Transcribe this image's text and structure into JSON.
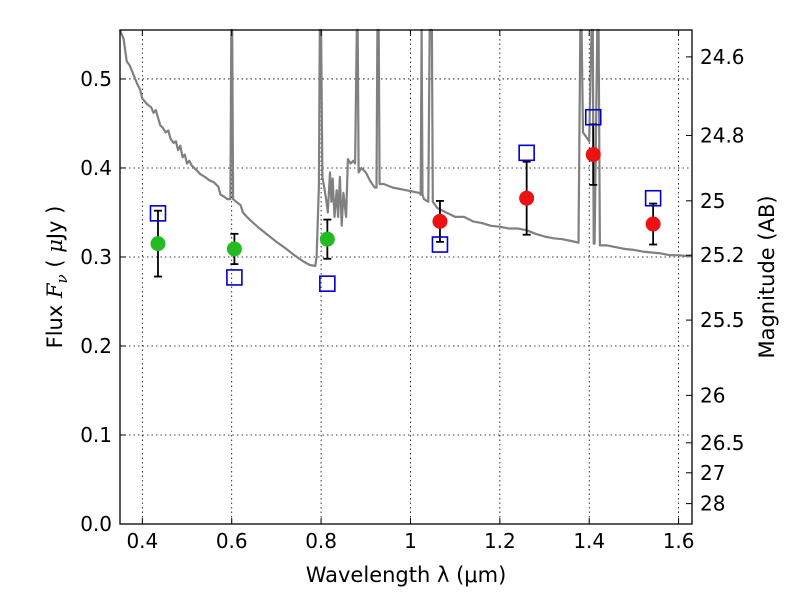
{
  "chart_data": {
    "type": "scatter",
    "xlabel": "Wavelength  λ (μm)",
    "ylabel_parts": [
      "Flux  ",
      "F",
      "ν",
      "  ( ",
      "μ",
      "Jy )"
    ],
    "y2label": "Magnitude (AB)",
    "xlim": [
      0.35,
      1.63
    ],
    "ylim": [
      0,
      0.555
    ],
    "grid": true,
    "x_ticks": [
      {
        "v": 0.4,
        "label": "0.4"
      },
      {
        "v": 0.6,
        "label": "0.6"
      },
      {
        "v": 0.8,
        "label": "0.8"
      },
      {
        "v": 1.0,
        "label": "1"
      },
      {
        "v": 1.2,
        "label": "1.2"
      },
      {
        "v": 1.4,
        "label": "1.4"
      },
      {
        "v": 1.6,
        "label": "1.6"
      }
    ],
    "y_ticks": [
      {
        "v": 0.0,
        "label": "0.0"
      },
      {
        "v": 0.1,
        "label": "0.1"
      },
      {
        "v": 0.2,
        "label": "0.2"
      },
      {
        "v": 0.3,
        "label": "0.3"
      },
      {
        "v": 0.4,
        "label": "0.4"
      },
      {
        "v": 0.5,
        "label": "0.5"
      }
    ],
    "y2_ticks": [
      {
        "mag": 24.6,
        "label": "24.6"
      },
      {
        "mag": 24.8,
        "label": "24.8"
      },
      {
        "mag": 25.0,
        "label": "25"
      },
      {
        "mag": 25.2,
        "label": "25.2"
      },
      {
        "mag": 25.5,
        "label": "25.5"
      },
      {
        "mag": 26.0,
        "label": "26"
      },
      {
        "mag": 26.5,
        "label": "26.5"
      },
      {
        "mag": 27.0,
        "label": "27"
      },
      {
        "mag": 28.0,
        "label": "28"
      }
    ],
    "series": [
      {
        "marker": "circle",
        "color": "#22bb22",
        "points": [
          {
            "x": 0.435,
            "y": 0.315,
            "err": 0.037
          },
          {
            "x": 0.606,
            "y": 0.309,
            "err": 0.017
          },
          {
            "x": 0.814,
            "y": 0.32,
            "err": 0.022
          }
        ]
      },
      {
        "marker": "circle",
        "color": "#ee1111",
        "points": [
          {
            "x": 1.066,
            "y": 0.34,
            "err": 0.023
          },
          {
            "x": 1.26,
            "y": 0.366,
            "err": 0.041
          },
          {
            "x": 1.409,
            "y": 0.415,
            "err": 0.034
          },
          {
            "x": 1.543,
            "y": 0.337,
            "err": 0.023
          }
        ]
      },
      {
        "marker": "square",
        "color": "#0000cc",
        "points": [
          {
            "x": 0.435,
            "y": 0.349
          },
          {
            "x": 0.606,
            "y": 0.277
          },
          {
            "x": 0.814,
            "y": 0.27
          },
          {
            "x": 1.066,
            "y": 0.314
          },
          {
            "x": 1.26,
            "y": 0.417
          },
          {
            "x": 1.409,
            "y": 0.457
          },
          {
            "x": 1.543,
            "y": 0.366
          }
        ]
      },
      {
        "marker": "line",
        "color": "#808080",
        "points": [
          [
            0.35,
            0.56
          ],
          [
            0.358,
            0.545
          ],
          [
            0.365,
            0.52
          ],
          [
            0.372,
            0.515
          ],
          [
            0.38,
            0.505
          ],
          [
            0.388,
            0.495
          ],
          [
            0.395,
            0.488
          ],
          [
            0.4,
            0.478
          ],
          [
            0.405,
            0.475
          ],
          [
            0.41,
            0.472
          ],
          [
            0.415,
            0.47
          ],
          [
            0.42,
            0.468
          ],
          [
            0.425,
            0.462
          ],
          [
            0.43,
            0.465
          ],
          [
            0.436,
            0.455
          ],
          [
            0.44,
            0.448
          ],
          [
            0.446,
            0.445
          ],
          [
            0.452,
            0.44
          ],
          [
            0.458,
            0.442
          ],
          [
            0.463,
            0.433
          ],
          [
            0.47,
            0.428
          ],
          [
            0.475,
            0.43
          ],
          [
            0.48,
            0.42
          ],
          [
            0.485,
            0.425
          ],
          [
            0.49,
            0.412
          ],
          [
            0.495,
            0.415
          ],
          [
            0.5,
            0.405
          ],
          [
            0.505,
            0.408
          ],
          [
            0.51,
            0.403
          ],
          [
            0.52,
            0.398
          ],
          [
            0.53,
            0.393
          ],
          [
            0.54,
            0.39
          ],
          [
            0.55,
            0.386
          ],
          [
            0.56,
            0.384
          ],
          [
            0.57,
            0.379
          ],
          [
            0.575,
            0.37
          ],
          [
            0.582,
            0.368
          ],
          [
            0.59,
            0.365
          ],
          [
            0.597,
            0.365
          ],
          [
            0.599,
            0.555
          ],
          [
            0.601,
            0.555
          ],
          [
            0.603,
            0.365
          ],
          [
            0.61,
            0.362
          ],
          [
            0.62,
            0.358
          ],
          [
            0.625,
            0.35
          ],
          [
            0.64,
            0.342
          ],
          [
            0.66,
            0.333
          ],
          [
            0.68,
            0.325
          ],
          [
            0.7,
            0.317
          ],
          [
            0.72,
            0.31
          ],
          [
            0.74,
            0.302
          ],
          [
            0.76,
            0.295
          ],
          [
            0.775,
            0.291
          ],
          [
            0.787,
            0.29
          ],
          [
            0.79,
            0.3
          ],
          [
            0.795,
            0.38
          ],
          [
            0.797,
            0.555
          ],
          [
            0.8,
            0.555
          ],
          [
            0.803,
            0.39
          ],
          [
            0.808,
            0.375
          ],
          [
            0.812,
            0.362
          ],
          [
            0.815,
            0.35
          ],
          [
            0.82,
            0.395
          ],
          [
            0.823,
            0.362
          ],
          [
            0.826,
            0.388
          ],
          [
            0.83,
            0.345
          ],
          [
            0.835,
            0.375
          ],
          [
            0.838,
            0.345
          ],
          [
            0.842,
            0.39
          ],
          [
            0.846,
            0.335
          ],
          [
            0.85,
            0.372
          ],
          [
            0.856,
            0.345
          ],
          [
            0.86,
            0.41
          ],
          [
            0.866,
            0.405
          ],
          [
            0.872,
            0.408
          ],
          [
            0.876,
            0.405
          ],
          [
            0.88,
            0.555
          ],
          [
            0.882,
            0.555
          ],
          [
            0.884,
            0.395
          ],
          [
            0.89,
            0.4
          ],
          [
            0.9,
            0.395
          ],
          [
            0.91,
            0.385
          ],
          [
            0.92,
            0.378
          ],
          [
            0.924,
            0.378
          ],
          [
            0.926,
            0.555
          ],
          [
            0.929,
            0.555
          ],
          [
            0.931,
            0.382
          ],
          [
            0.94,
            0.382
          ],
          [
            0.96,
            0.378
          ],
          [
            0.98,
            0.376
          ],
          [
            1.0,
            0.374
          ],
          [
            1.02,
            0.372
          ],
          [
            1.023,
            0.37
          ],
          [
            1.025,
            0.555
          ],
          [
            1.027,
            0.37
          ],
          [
            1.03,
            0.365
          ],
          [
            1.04,
            0.362
          ],
          [
            1.043,
            0.555
          ],
          [
            1.048,
            0.555
          ],
          [
            1.05,
            0.362
          ],
          [
            1.06,
            0.355
          ],
          [
            1.08,
            0.35
          ],
          [
            1.1,
            0.345
          ],
          [
            1.12,
            0.345
          ],
          [
            1.14,
            0.34
          ],
          [
            1.16,
            0.338
          ],
          [
            1.18,
            0.335
          ],
          [
            1.2,
            0.334
          ],
          [
            1.22,
            0.332
          ],
          [
            1.24,
            0.332
          ],
          [
            1.26,
            0.33
          ],
          [
            1.28,
            0.326
          ],
          [
            1.3,
            0.323
          ],
          [
            1.32,
            0.321
          ],
          [
            1.34,
            0.32
          ],
          [
            1.36,
            0.318
          ],
          [
            1.376,
            0.316
          ],
          [
            1.38,
            0.555
          ],
          [
            1.383,
            0.555
          ],
          [
            1.386,
            0.44
          ],
          [
            1.4,
            0.43
          ],
          [
            1.405,
            0.555
          ],
          [
            1.408,
            0.555
          ],
          [
            1.41,
            0.315
          ],
          [
            1.412,
            0.315
          ],
          [
            1.418,
            0.555
          ],
          [
            1.421,
            0.555
          ],
          [
            1.424,
            0.313
          ],
          [
            1.44,
            0.313
          ],
          [
            1.46,
            0.311
          ],
          [
            1.48,
            0.309
          ],
          [
            1.5,
            0.308
          ],
          [
            1.52,
            0.306
          ],
          [
            1.54,
            0.305
          ],
          [
            1.56,
            0.304
          ],
          [
            1.58,
            0.302
          ],
          [
            1.6,
            0.302
          ],
          [
            1.62,
            0.301
          ],
          [
            1.63,
            0.301
          ]
        ]
      }
    ]
  }
}
